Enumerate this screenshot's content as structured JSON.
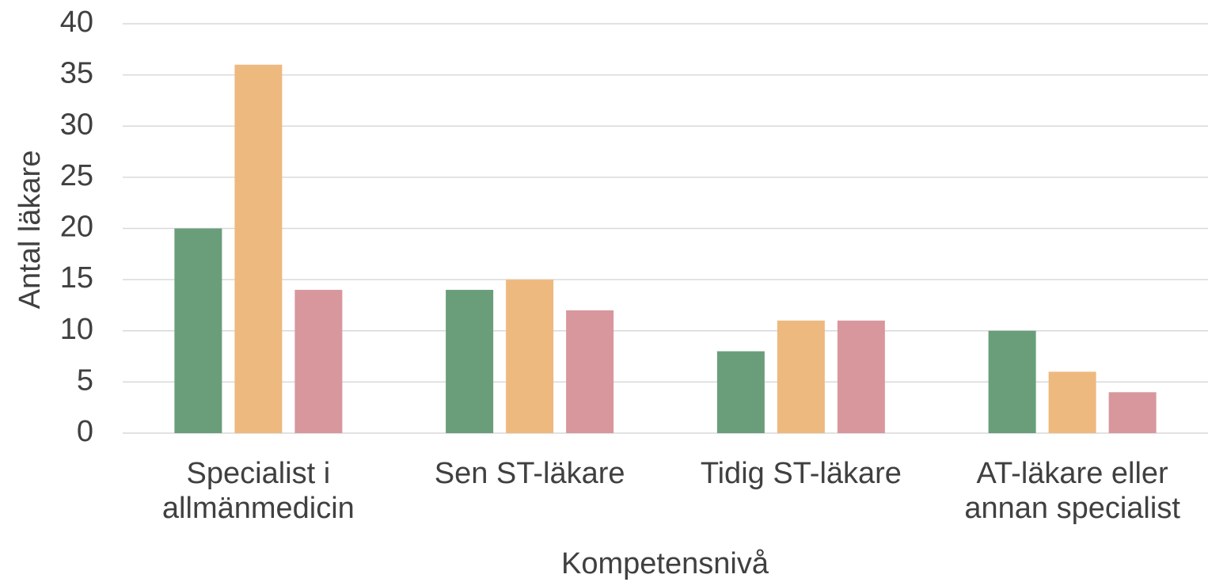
{
  "chart_data": {
    "type": "bar",
    "x_label": "Kompetensnivå",
    "y_label": "Antal läkare",
    "categories": [
      "Specialist i allmänmedicin",
      "Sen ST-läkare",
      "Tidig ST-läkare",
      "AT-läkare eller annan specialist"
    ],
    "series": [
      {
        "color": "#6a9e7b",
        "values": [
          20,
          14,
          8,
          10
        ]
      },
      {
        "color": "#eeb97f",
        "values": [
          36,
          15,
          11,
          6
        ]
      },
      {
        "color": "#d8979d",
        "values": [
          14,
          12,
          11,
          4
        ]
      }
    ],
    "ylim": [
      0,
      40
    ],
    "yticks": [
      0,
      5,
      10,
      15,
      20,
      25,
      30,
      35,
      40
    ],
    "grid": true
  }
}
